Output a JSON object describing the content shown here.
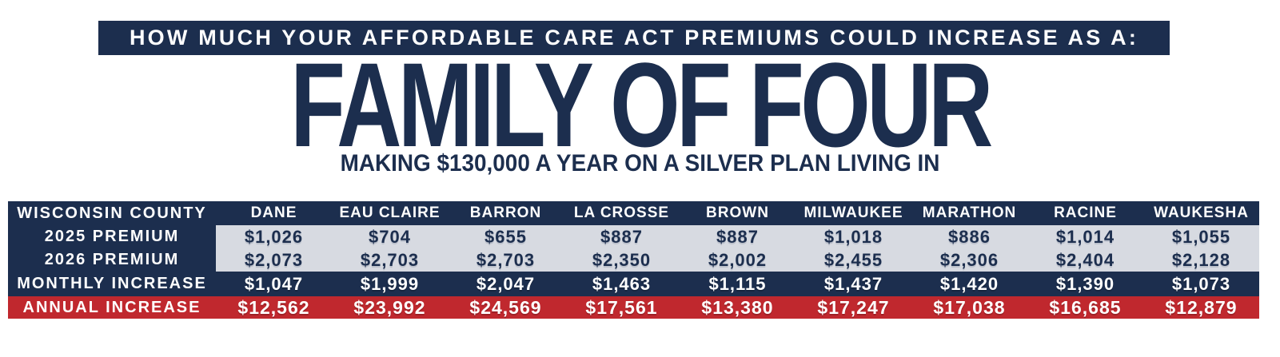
{
  "banner": {
    "text": "HOW MUCH YOUR AFFORDABLE CARE ACT PREMIUMS COULD INCREASE AS A:"
  },
  "title": "FAMILY OF FOUR",
  "subtitle": "MAKING $130,000 A YEAR ON A SILVER PLAN LIVING IN",
  "colors": {
    "navy": "#1c2e4e",
    "red": "#c0282e",
    "gray": "#d7dae1",
    "white": "#ffffff"
  },
  "table": {
    "header_label": "WISCONSIN COUNTY",
    "counties": [
      "DANE",
      "EAU CLAIRE",
      "BARRON",
      "LA CROSSE",
      "BROWN",
      "MILWAUKEE",
      "MARATHON",
      "RACINE",
      "WAUKESHA"
    ],
    "rows": [
      {
        "label": "2025 PREMIUM",
        "values": [
          "$1,026",
          "$704",
          "$655",
          "$887",
          "$887",
          "$1,018",
          "$886",
          "$1,014",
          "$1,055"
        ]
      },
      {
        "label": "2026 PREMIUM",
        "values": [
          "$2,073",
          "$2,703",
          "$2,703",
          "$2,350",
          "$2,002",
          "$2,455",
          "$2,306",
          "$2,404",
          "$2,128"
        ]
      },
      {
        "label": "MONTHLY INCREASE",
        "values": [
          "$1,047",
          "$1,999",
          "$2,047",
          "$1,463",
          "$1,115",
          "$1,437",
          "$1,420",
          "$1,390",
          "$1,073"
        ]
      },
      {
        "label": "ANNUAL INCREASE",
        "values": [
          "$12,562",
          "$23,992",
          "$24,569",
          "$17,561",
          "$13,380",
          "$17,247",
          "$17,038",
          "$16,685",
          "$12,879"
        ]
      }
    ]
  },
  "chart_data": {
    "type": "table",
    "title": "HOW MUCH YOUR AFFORDABLE CARE ACT PREMIUMS COULD INCREASE AS A: FAMILY OF FOUR",
    "subtitle": "MAKING $130,000 A YEAR ON A SILVER PLAN LIVING IN",
    "categories": [
      "DANE",
      "EAU CLAIRE",
      "BARRON",
      "LA CROSSE",
      "BROWN",
      "MILWAUKEE",
      "MARATHON",
      "RACINE",
      "WAUKESHA"
    ],
    "row_header": "WISCONSIN COUNTY",
    "series": [
      {
        "name": "2025 PREMIUM",
        "values": [
          1026,
          704,
          655,
          887,
          887,
          1018,
          886,
          1014,
          1055
        ]
      },
      {
        "name": "2026 PREMIUM",
        "values": [
          2073,
          2703,
          2703,
          2350,
          2002,
          2455,
          2306,
          2404,
          2128
        ]
      },
      {
        "name": "MONTHLY INCREASE",
        "values": [
          1047,
          1999,
          2047,
          1463,
          1115,
          1437,
          1420,
          1390,
          1073
        ]
      },
      {
        "name": "ANNUAL INCREASE",
        "values": [
          12562,
          23992,
          24569,
          17561,
          13380,
          17247,
          17038,
          16685,
          12879
        ]
      }
    ],
    "units": "USD"
  }
}
